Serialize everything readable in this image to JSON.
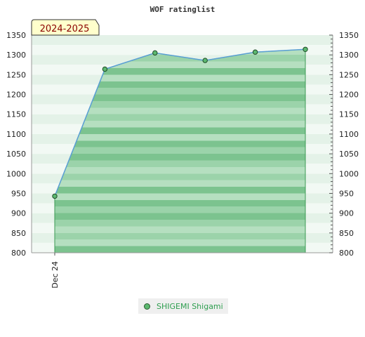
{
  "chart_data": {
    "type": "area",
    "title": "WOF ratinglist",
    "period_badge": "2024-2025",
    "x_tick_labels": [
      "Dec 24"
    ],
    "ylim": [
      800,
      1350
    ],
    "y_ticks": [
      800,
      850,
      900,
      950,
      1000,
      1050,
      1100,
      1150,
      1200,
      1250,
      1300,
      1350
    ],
    "grid": false,
    "legend_position": "bottom",
    "series": [
      {
        "name": "SHIGEMI Shigami",
        "color": "#5cb86f",
        "line_color": "#5a9fd4",
        "values": [
          943,
          1264,
          1305,
          1286,
          1307,
          1314
        ]
      }
    ]
  }
}
